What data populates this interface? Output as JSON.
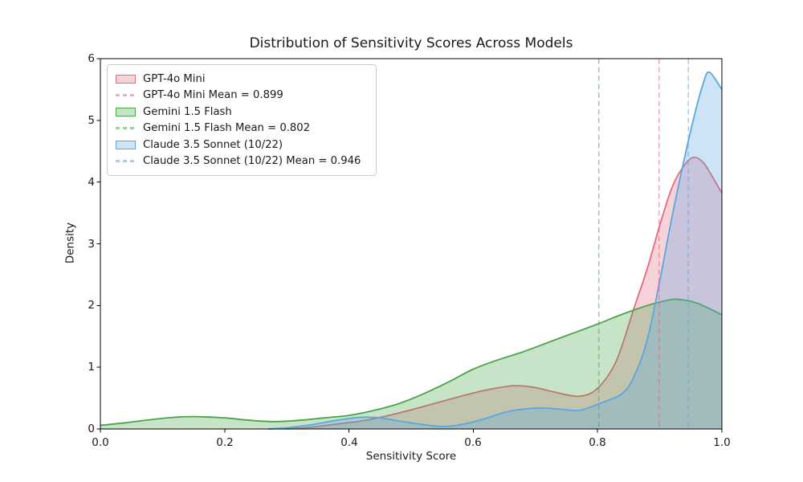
{
  "figure": {
    "title": "Distribution of Sensitivity Scores Across Models"
  },
  "axes": {
    "xlabel": "Sensitivity Score",
    "ylabel": "Density",
    "x_tick_labels": [
      "0.0",
      "0.2",
      "0.4",
      "0.6",
      "0.8",
      "1.0"
    ],
    "y_tick_labels": [
      "0",
      "1",
      "2",
      "3",
      "4",
      "5",
      "6"
    ]
  },
  "legend": {
    "items": [
      {
        "label": "GPT-4o Mini",
        "type": "patch",
        "series": 0
      },
      {
        "label": "GPT-4o Mini Mean = 0.899",
        "type": "dash",
        "series": 0
      },
      {
        "label": "Gemini 1.5 Flash",
        "type": "patch",
        "series": 1
      },
      {
        "label": "Gemini 1.5 Flash Mean = 0.802",
        "type": "dash",
        "series": 1
      },
      {
        "label": "Claude 3.5 Sonnet (10/22)",
        "type": "patch",
        "series": 2
      },
      {
        "label": "Claude 3.5 Sonnet (10/22) Mean = 0.946",
        "type": "dash",
        "series": 2
      }
    ]
  },
  "chart_data": {
    "type": "area",
    "subtype": "kde-density",
    "title": "Distribution of Sensitivity Scores Across Models",
    "xlabel": "Sensitivity Score",
    "ylabel": "Density",
    "xlim": [
      0.0,
      1.0
    ],
    "ylim": [
      0,
      6
    ],
    "x_ticks": [
      0.0,
      0.2,
      0.4,
      0.6,
      0.8,
      1.0
    ],
    "y_ticks": [
      0,
      1,
      2,
      3,
      4,
      5,
      6
    ],
    "grid": false,
    "legend_position": "upper left",
    "fill_opacity": 0.3,
    "series": [
      {
        "name": "GPT-4o Mini",
        "color": "#e5697f",
        "mean": 0.899,
        "mean_label": "GPT-4o Mini Mean = 0.899",
        "points": [
          [
            0.3,
            0.0
          ],
          [
            0.34,
            0.03
          ],
          [
            0.38,
            0.08
          ],
          [
            0.42,
            0.13
          ],
          [
            0.46,
            0.21
          ],
          [
            0.5,
            0.31
          ],
          [
            0.54,
            0.42
          ],
          [
            0.58,
            0.53
          ],
          [
            0.62,
            0.63
          ],
          [
            0.665,
            0.7
          ],
          [
            0.7,
            0.67
          ],
          [
            0.73,
            0.6
          ],
          [
            0.77,
            0.53
          ],
          [
            0.8,
            0.66
          ],
          [
            0.83,
            1.1
          ],
          [
            0.86,
            2.0
          ],
          [
            0.88,
            2.6
          ],
          [
            0.9,
            3.3
          ],
          [
            0.92,
            3.92
          ],
          [
            0.94,
            4.28
          ],
          [
            0.955,
            4.4
          ],
          [
            0.97,
            4.32
          ],
          [
            0.985,
            4.08
          ],
          [
            1.0,
            3.82
          ]
        ]
      },
      {
        "name": "Gemini 1.5 Flash",
        "color": "#4aa54a",
        "mean": 0.802,
        "mean_label": "Gemini 1.5 Flash Mean = 0.802",
        "points": [
          [
            0.0,
            0.06
          ],
          [
            0.04,
            0.1
          ],
          [
            0.08,
            0.15
          ],
          [
            0.12,
            0.19
          ],
          [
            0.15,
            0.2
          ],
          [
            0.2,
            0.18
          ],
          [
            0.24,
            0.14
          ],
          [
            0.28,
            0.12
          ],
          [
            0.32,
            0.14
          ],
          [
            0.36,
            0.18
          ],
          [
            0.4,
            0.22
          ],
          [
            0.44,
            0.3
          ],
          [
            0.48,
            0.41
          ],
          [
            0.52,
            0.57
          ],
          [
            0.56,
            0.76
          ],
          [
            0.6,
            0.97
          ],
          [
            0.64,
            1.12
          ],
          [
            0.68,
            1.25
          ],
          [
            0.72,
            1.4
          ],
          [
            0.76,
            1.55
          ],
          [
            0.8,
            1.7
          ],
          [
            0.84,
            1.86
          ],
          [
            0.88,
            2.0
          ],
          [
            0.91,
            2.08
          ],
          [
            0.93,
            2.1
          ],
          [
            0.96,
            2.04
          ],
          [
            1.0,
            1.85
          ]
        ]
      },
      {
        "name": "Claude 3.5 Sonnet (10/22)",
        "color": "#5aa7e0",
        "mean": 0.946,
        "mean_label": "Claude 3.5 Sonnet (10/22) Mean = 0.946",
        "points": [
          [
            0.27,
            0.0
          ],
          [
            0.3,
            0.02
          ],
          [
            0.34,
            0.07
          ],
          [
            0.38,
            0.14
          ],
          [
            0.42,
            0.19
          ],
          [
            0.45,
            0.18
          ],
          [
            0.48,
            0.13
          ],
          [
            0.52,
            0.07
          ],
          [
            0.55,
            0.04
          ],
          [
            0.58,
            0.07
          ],
          [
            0.62,
            0.17
          ],
          [
            0.65,
            0.27
          ],
          [
            0.68,
            0.32
          ],
          [
            0.71,
            0.34
          ],
          [
            0.74,
            0.32
          ],
          [
            0.77,
            0.3
          ],
          [
            0.8,
            0.4
          ],
          [
            0.84,
            0.58
          ],
          [
            0.86,
            0.88
          ],
          [
            0.88,
            1.45
          ],
          [
            0.9,
            2.4
          ],
          [
            0.92,
            3.45
          ],
          [
            0.94,
            4.4
          ],
          [
            0.955,
            5.05
          ],
          [
            0.97,
            5.6
          ],
          [
            0.98,
            5.78
          ],
          [
            1.0,
            5.5
          ]
        ]
      }
    ]
  }
}
